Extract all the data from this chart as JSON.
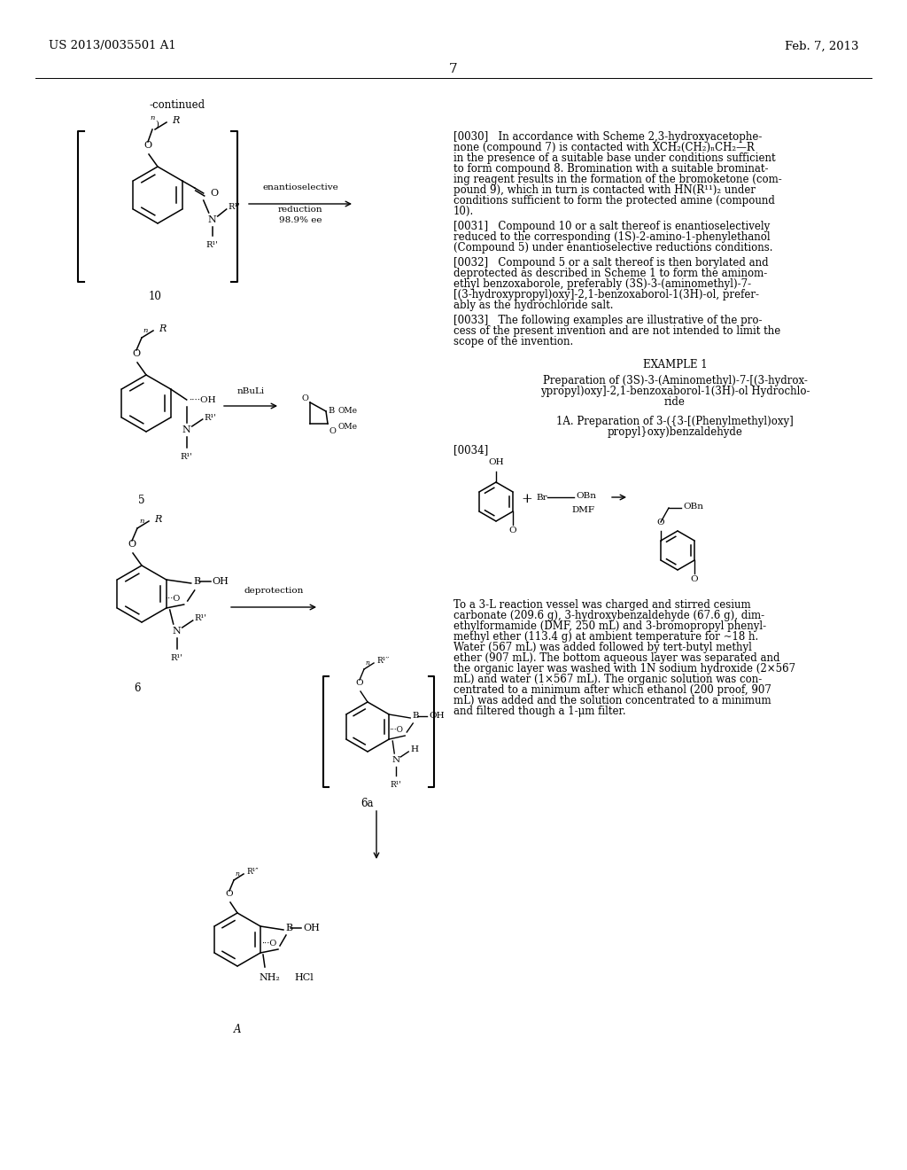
{
  "background_color": "#ffffff",
  "page_number": "7",
  "patent_number": "US 2013/0035501 A1",
  "patent_date": "Feb. 7, 2013",
  "continued_label": "-continued",
  "para0030_lines": [
    "[0030]   In accordance with Scheme 2,3-hydroxyacetophe-",
    "none (compound 7) is contacted with XCH₂(CH₂)ₙCH₂—R",
    "in the presence of a suitable base under conditions sufficient",
    "to form compound 8. Bromination with a suitable brominat-",
    "ing reagent results in the formation of the bromoketone (com-",
    "pound 9), which in turn is contacted with HN(R¹¹)₂ under",
    "conditions sufficient to form the protected amine (compound",
    "10)."
  ],
  "para0031_lines": [
    "[0031]   Compound 10 or a salt thereof is enantioselectively",
    "reduced to the corresponding (1S)-2-amino-1-phenylethanol",
    "(Compound 5) under enantioselective reductions conditions."
  ],
  "para0032_lines": [
    "[0032]   Compound 5 or a salt thereof is then borylated and",
    "deprotected as described in Scheme 1 to form the aminom-",
    "ethyl benzoxaborole, preferably (3S)-3-(aminomethyl)-7-",
    "[(3-hydroxypropyl)oxy]-2,1-benzoxaborol-1(3H)-ol, prefer-",
    "ably as the hydrochloride salt."
  ],
  "para0033_lines": [
    "[0033]   The following examples are illustrative of the pro-",
    "cess of the present invention and are not intended to limit the",
    "scope of the invention."
  ],
  "example1_title": "EXAMPLE 1",
  "example1_sub_lines": [
    "Preparation of (3S)-3-(Aminomethyl)-7-[(3-hydrox-",
    "ypropyl)oxy]-2,1-benzoxaborol-1(3H)-ol Hydrochlo-",
    "ride"
  ],
  "step1a_lines": [
    "1A. Preparation of 3-({3-[(Phenylmethyl)oxy]",
    "propyl}oxy)benzaldehyde"
  ],
  "para0034": "[0034]",
  "bottom_text_lines": [
    "To a 3-L reaction vessel was charged and stirred cesium",
    "carbonate (209.6 g), 3-hydroxybenzaldehyde (67.6 g), dim-",
    "ethylformamide (DMF, 250 mL) and 3-bromopropyl phenyl-",
    "methyl ether (113.4 g) at ambient temperature for ~18 h.",
    "Water (567 mL) was added followed by tert-butyl methyl",
    "ether (907 mL). The bottom aqueous layer was separated and",
    "the organic layer was washed with 1N sodium hydroxide (2×567",
    "mL) and water (1×567 mL). The organic solution was con-",
    "centrated to a minimum after which ethanol (200 proof, 907",
    "mL) was added and the solution concentrated to a minimum",
    "and filtered though a 1-μm filter."
  ]
}
